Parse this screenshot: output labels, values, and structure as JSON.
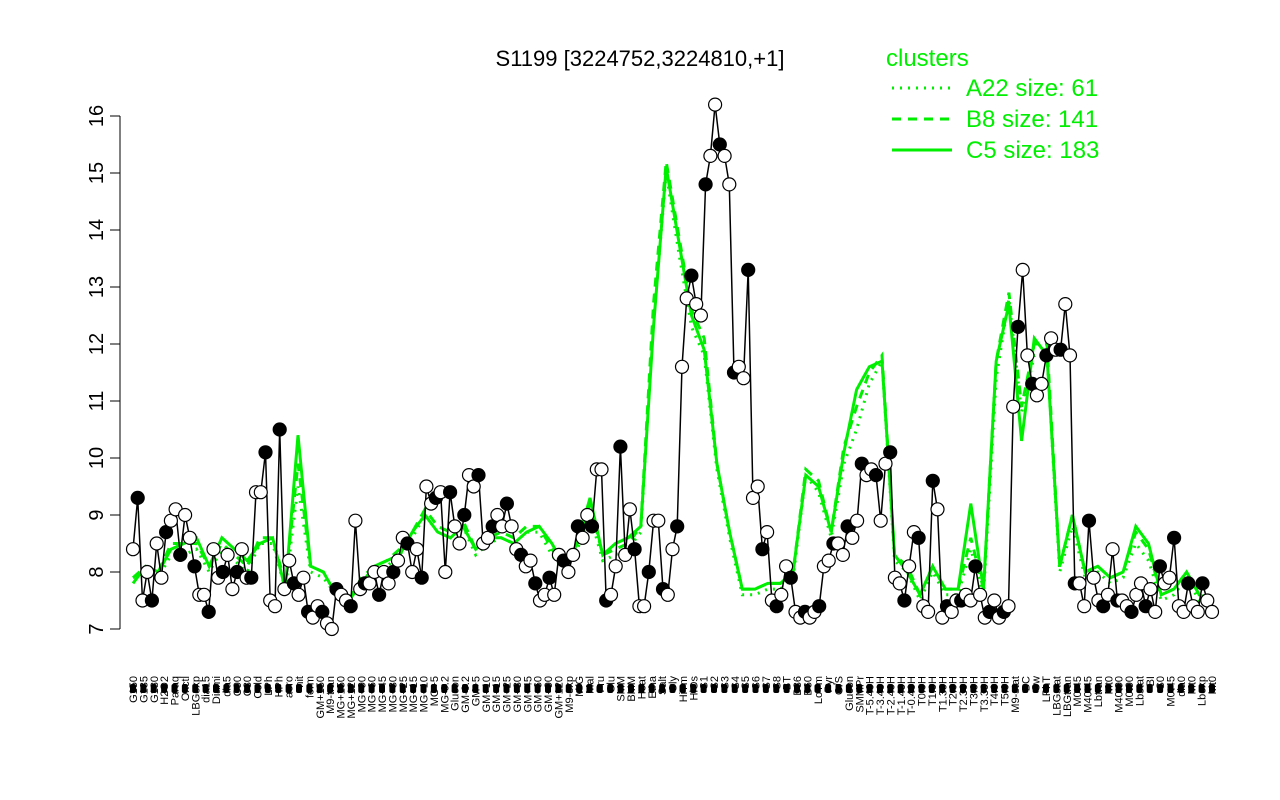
{
  "chart_data": {
    "type": "line",
    "title": "S1199 [3224752,3224810,+1]",
    "xlabel": "",
    "ylabel": "",
    "ylim": [
      7,
      16
    ],
    "yticks": [
      7,
      8,
      9,
      10,
      11,
      12,
      13,
      14,
      15,
      16
    ],
    "grid": false,
    "legend": {
      "placement": "top-right",
      "title": "clusters",
      "color": "#00ee00",
      "entries": [
        {
          "label": "A22 size: 61",
          "style": "dotted"
        },
        {
          "label": "B8 size: 141",
          "style": "dashed"
        },
        {
          "label": "C5 size: 183",
          "style": "solid"
        }
      ]
    },
    "x_tick_labels": [
      "G150",
      "G135",
      "G180",
      "H2O2",
      "Paraq",
      "Oxctl",
      "LBGexp",
      "dia15",
      "Diami",
      "dia5",
      "C90",
      "C30",
      "Cold",
      "LPh",
      "HPh",
      "aero",
      "nit",
      "ferm",
      "GM+150",
      "M9-tran",
      "MG+150",
      "MG+120",
      "MG+90",
      "MG+60",
      "MG+45",
      "MG+30",
      "MG+25",
      "MG+15",
      "MG+10",
      "MG+5",
      "MG-0.2",
      "Glucon",
      "GM-0.2",
      "GM+5",
      "GM+10",
      "GM+15",
      "GM+25",
      "GM+30",
      "GM+45",
      "GM+60",
      "GM+90",
      "GM+120",
      "M9-exp",
      "M/G",
      "Mal",
      "Fru",
      "Glu",
      "SMM",
      "BMM",
      "Heat",
      "Etha",
      "Salt",
      "Gly",
      "HiTm",
      "HiOs",
      "S1",
      "S2",
      "S3",
      "S4",
      "S5",
      "S6",
      "S7",
      "S8",
      "BT",
      "B36",
      "B60",
      "LoTm",
      "Pyr",
      "G/S",
      "Glucon",
      "SMMPr",
      "T-5.40H",
      "T-3.40H",
      "T-2.40H",
      "T-1.40H",
      "T-0.40H",
      "T0.0H",
      "T1.0H",
      "T1.30H",
      "T2.0H",
      "T2.30H",
      "T3.0H",
      "T3.30H",
      "T4.0H",
      "T5.0H",
      "M9-stat",
      "BC",
      "Sw",
      "LPhT",
      "LBGstat",
      "LBGtran",
      "M0t45",
      "M40t45",
      "Lbtran",
      "Mt0",
      "M40t90",
      "M0t90",
      "Lbstat",
      "BI",
      "S0",
      "M0t45",
      "dia0",
      "Mt0",
      "Lbexp",
      "Mt0"
    ],
    "series": [
      {
        "style": "points-line",
        "color": "#000000",
        "values": [
          8.4,
          9.3,
          7.5,
          8.0,
          7.5,
          8.5,
          7.9,
          8.7,
          8.9,
          9.1,
          8.3,
          9.0,
          8.6,
          8.1,
          7.6,
          7.6,
          7.3,
          8.4,
          7.9,
          8.0,
          8.3,
          7.7,
          8.0,
          8.4,
          7.9,
          7.9,
          9.4,
          9.4,
          10.1,
          7.5,
          7.4,
          10.5,
          7.7,
          8.2,
          7.8,
          7.6,
          7.9,
          7.3,
          7.2,
          7.4,
          7.3,
          7.1,
          7.0,
          7.7,
          7.6,
          7.5,
          7.4,
          8.9,
          7.7,
          7.8,
          7.8,
          8.0,
          7.6,
          8.0,
          7.8,
          8.0,
          8.2,
          8.6,
          8.5,
          8.0,
          8.4,
          7.9,
          9.5,
          9.2,
          9.3,
          9.4,
          8.0,
          9.4,
          8.8,
          8.5,
          9.0,
          9.7,
          9.5,
          9.7,
          8.5,
          8.6,
          8.8,
          9.0,
          8.8,
          9.2,
          8.8,
          8.4,
          8.3,
          8.1,
          8.2,
          7.8,
          7.5,
          7.6,
          7.9,
          7.6,
          8.3,
          8.2,
          8.0,
          8.3,
          8.8,
          8.6,
          9.0,
          8.8,
          9.8,
          9.8,
          7.5,
          7.6,
          8.1,
          10.2,
          8.3,
          9.1,
          8.4,
          7.4,
          7.4,
          8.0,
          8.9,
          8.9,
          7.7,
          7.6,
          8.4,
          8.8,
          11.6,
          12.8,
          13.2,
          12.7,
          12.5,
          14.8,
          15.3,
          16.2,
          15.5,
          15.3,
          14.8,
          11.5,
          11.6,
          11.4,
          13.3,
          9.3,
          9.5,
          8.4,
          8.7,
          7.5,
          7.4,
          7.6,
          8.1,
          7.9,
          7.3,
          7.2,
          7.3,
          7.2,
          7.3,
          7.4,
          8.1,
          8.2,
          8.5,
          8.5,
          8.3,
          8.8,
          8.6,
          8.9,
          9.9,
          9.7,
          9.8,
          9.7,
          8.9,
          9.9,
          10.1,
          7.9,
          7.8,
          7.5,
          8.1,
          8.7,
          8.6,
          7.4,
          7.3,
          9.6,
          9.1,
          7.2,
          7.4,
          7.3,
          7.5,
          7.5,
          7.6,
          7.5,
          8.1,
          7.6,
          7.2,
          7.3,
          7.5,
          7.2,
          7.3,
          7.4,
          10.9,
          12.3,
          13.3,
          11.8,
          11.3,
          11.1,
          11.3,
          11.8,
          12.1,
          11.9,
          11.9,
          12.7,
          11.8,
          7.8,
          7.8,
          7.4,
          8.9,
          7.9,
          7.5,
          7.4,
          7.6,
          8.4,
          7.5,
          7.5,
          7.4,
          7.3,
          7.6,
          7.8,
          7.4,
          7.7,
          7.3,
          8.1,
          7.8,
          7.9,
          8.6,
          7.4,
          7.3,
          7.8,
          7.4,
          7.3,
          7.8,
          7.5,
          7.3
        ]
      },
      {
        "name": "A22",
        "style": "dotted",
        "color": "#00ee00",
        "values": [
          7.9,
          8.0,
          7.9,
          8.3,
          8.3,
          8.4,
          8.0,
          8.4,
          8.2,
          8.0,
          8.5,
          8.5,
          7.7,
          9.5,
          8.0,
          7.9,
          7.6,
          7.5,
          7.8,
          8.0,
          8.1,
          8.3,
          8.6,
          9.0,
          8.7,
          8.6,
          8.8,
          8.3,
          8.5,
          8.6,
          8.5,
          8.7,
          8.7,
          8.3,
          8.0,
          8.4,
          9.0,
          8.2,
          8.3,
          8.4,
          8.7,
          12.4,
          15.0,
          13.6,
          12.3,
          11.8,
          9.8,
          8.6,
          7.6,
          7.6,
          7.7,
          7.7,
          7.9,
          9.7,
          9.4,
          8.6,
          9.9,
          10.5,
          11.3,
          11.7,
          8.2,
          8.0,
          7.5,
          8.0,
          7.6,
          7.6,
          8.4,
          7.6,
          11.4,
          12.8,
          10.8,
          11.8,
          11.8,
          8.0,
          8.8,
          7.9,
          8.0,
          7.8,
          7.9,
          8.5,
          8.2,
          7.5,
          7.6,
          7.9,
          7.5,
          7.4
        ]
      },
      {
        "name": "B8",
        "style": "dashed",
        "color": "#00ee00",
        "values": [
          7.9,
          8.1,
          8.0,
          8.5,
          8.5,
          8.5,
          8.1,
          8.5,
          8.3,
          8.1,
          8.6,
          8.6,
          7.8,
          9.9,
          8.1,
          8.0,
          7.6,
          7.5,
          7.9,
          8.1,
          8.2,
          8.4,
          8.7,
          9.1,
          8.8,
          8.7,
          8.9,
          8.4,
          8.6,
          8.7,
          8.6,
          8.8,
          8.8,
          8.4,
          8.1,
          8.5,
          9.2,
          8.3,
          8.4,
          8.5,
          8.8,
          12.7,
          15.2,
          13.9,
          12.6,
          12.1,
          9.9,
          8.7,
          7.7,
          7.7,
          7.8,
          7.8,
          8.0,
          9.8,
          9.6,
          8.7,
          10.2,
          10.9,
          11.5,
          11.8,
          8.3,
          8.1,
          7.6,
          8.1,
          7.7,
          7.7,
          8.6,
          7.7,
          11.7,
          12.9,
          10.9,
          12.0,
          12.0,
          8.1,
          9.0,
          8.0,
          8.1,
          7.9,
          8.0,
          8.7,
          8.4,
          7.6,
          7.7,
          8.0,
          7.6,
          7.5
        ]
      },
      {
        "name": "C5",
        "style": "solid",
        "color": "#00ee00",
        "values": [
          7.8,
          8.1,
          8.0,
          8.4,
          8.5,
          8.6,
          8.1,
          8.6,
          8.4,
          8.2,
          8.5,
          8.6,
          7.7,
          10.4,
          8.1,
          8.0,
          7.6,
          7.5,
          7.8,
          8.1,
          8.2,
          8.3,
          8.7,
          9.0,
          8.7,
          8.6,
          8.8,
          8.4,
          8.6,
          8.6,
          8.5,
          8.7,
          8.8,
          8.5,
          8.1,
          8.5,
          9.3,
          8.3,
          8.5,
          8.6,
          8.8,
          12.3,
          15.1,
          13.8,
          12.5,
          11.9,
          9.9,
          8.7,
          7.7,
          7.7,
          7.8,
          7.8,
          8.0,
          9.7,
          9.5,
          8.7,
          10.1,
          11.2,
          11.6,
          11.7,
          8.3,
          8.0,
          7.6,
          8.1,
          7.7,
          7.7,
          9.2,
          7.7,
          11.7,
          12.7,
          10.3,
          12.1,
          11.8,
          8.1,
          9.0,
          8.0,
          8.1,
          7.9,
          8.0,
          8.8,
          8.5,
          7.6,
          7.7,
          8.0,
          7.6,
          7.5
        ]
      }
    ]
  }
}
